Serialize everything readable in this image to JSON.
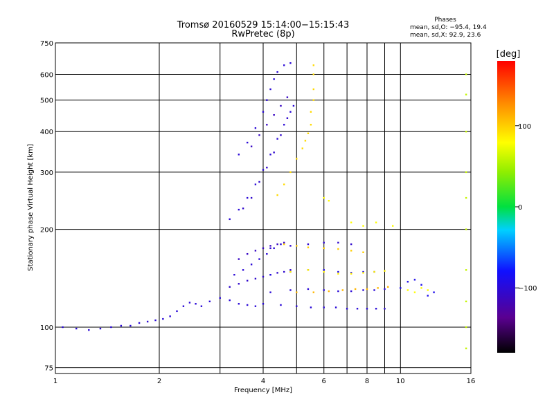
{
  "chart_data": {
    "type": "scatter",
    "title": "Tromsø 20160529 15:14:00−15:15:43",
    "subtitle": "RwPretec (8p)",
    "xlabel": "Frequency [MHz]",
    "ylabel": "Stationary phase Virtual Height [km]",
    "x_scale": "log",
    "y_scale": "log",
    "xlim": [
      1,
      16
    ],
    "ylim": [
      72,
      750
    ],
    "grid": true,
    "x_ticks": [
      1,
      2,
      4,
      6,
      8,
      10,
      16
    ],
    "x_tick_labels": [
      "1",
      "2",
      "4",
      "6",
      "8",
      "10",
      "16"
    ],
    "x_minor_ticks": [
      3,
      5,
      7,
      9
    ],
    "y_ticks": [
      75,
      100,
      200,
      300,
      400,
      500,
      600,
      750
    ],
    "y_tick_labels": [
      "75",
      "100",
      "200",
      "300",
      "400",
      "500",
      "600",
      "750"
    ],
    "phases": {
      "heading": "Phases",
      "line_o": "mean, sd,O: −95.4, 19.4",
      "line_x": "mean, sd,X:  92.9, 23.6"
    },
    "colorbar": {
      "label": "[deg]",
      "range": [
        -180,
        180
      ],
      "ticks": [
        -100,
        0,
        100
      ],
      "tick_labels": [
        "−100",
        "0",
        "100"
      ]
    },
    "series": [
      {
        "phase": -100,
        "points": [
          [
            1.05,
            100
          ],
          [
            1.15,
            99
          ],
          [
            1.25,
            98
          ],
          [
            1.35,
            99
          ],
          [
            1.45,
            100
          ],
          [
            1.55,
            101
          ],
          [
            1.65,
            101
          ],
          [
            1.75,
            103
          ],
          [
            1.85,
            104
          ],
          [
            1.95,
            105
          ],
          [
            2.05,
            106
          ],
          [
            2.15,
            108
          ],
          [
            2.25,
            112
          ],
          [
            2.35,
            116
          ],
          [
            2.45,
            119
          ],
          [
            2.55,
            118
          ],
          [
            2.65,
            116
          ],
          [
            2.8,
            120
          ],
          [
            3.0,
            123
          ],
          [
            3.2,
            121
          ],
          [
            3.4,
            118
          ],
          [
            3.6,
            117
          ],
          [
            3.8,
            116
          ]
        ]
      },
      {
        "phase": -105,
        "points": [
          [
            3.2,
            133
          ],
          [
            3.4,
            136
          ],
          [
            3.6,
            139
          ],
          [
            3.8,
            141
          ],
          [
            4.0,
            143
          ],
          [
            4.2,
            145
          ],
          [
            4.4,
            147
          ],
          [
            4.6,
            148
          ],
          [
            4.8,
            150
          ]
        ]
      },
      {
        "phase": -100,
        "points": [
          [
            3.3,
            145
          ],
          [
            3.5,
            150
          ],
          [
            3.7,
            156
          ],
          [
            3.9,
            162
          ],
          [
            4.1,
            168
          ],
          [
            4.3,
            175
          ],
          [
            4.5,
            180
          ]
        ]
      },
      {
        "phase": -110,
        "points": [
          [
            3.4,
            162
          ],
          [
            3.6,
            168
          ],
          [
            3.8,
            172
          ],
          [
            4.0,
            175
          ],
          [
            4.2,
            178
          ],
          [
            4.4,
            180
          ],
          [
            4.6,
            182
          ]
        ]
      },
      {
        "phase": -100,
        "points": [
          [
            3.2,
            215
          ],
          [
            3.4,
            230
          ],
          [
            3.6,
            250
          ],
          [
            3.8,
            275
          ],
          [
            4.0,
            305
          ],
          [
            4.2,
            340
          ],
          [
            4.4,
            380
          ],
          [
            4.6,
            420
          ],
          [
            4.8,
            460
          ],
          [
            4.9,
            480
          ]
        ]
      },
      {
        "phase": -105,
        "points": [
          [
            3.5,
            232
          ],
          [
            3.7,
            250
          ],
          [
            3.9,
            280
          ],
          [
            4.1,
            310
          ],
          [
            4.3,
            345
          ],
          [
            4.5,
            390
          ],
          [
            4.7,
            440
          ]
        ]
      },
      {
        "phase": -100,
        "points": [
          [
            3.4,
            340
          ],
          [
            3.6,
            370
          ],
          [
            3.8,
            410
          ],
          [
            4.0,
            460
          ],
          [
            4.1,
            500
          ],
          [
            4.2,
            540
          ],
          [
            4.3,
            580
          ],
          [
            4.4,
            610
          ],
          [
            4.6,
            640
          ],
          [
            4.8,
            650
          ]
        ]
      },
      {
        "phase": -110,
        "points": [
          [
            3.7,
            360
          ],
          [
            3.9,
            390
          ],
          [
            4.1,
            420
          ],
          [
            4.3,
            450
          ],
          [
            4.5,
            480
          ],
          [
            4.7,
            510
          ]
        ]
      },
      {
        "phase": -100,
        "points": [
          [
            4.0,
            118
          ],
          [
            4.5,
            117
          ],
          [
            5.0,
            116
          ],
          [
            5.5,
            115
          ],
          [
            6.0,
            115
          ],
          [
            6.5,
            115
          ],
          [
            7.0,
            114
          ],
          [
            7.5,
            114
          ],
          [
            8.0,
            114
          ],
          [
            8.5,
            114
          ],
          [
            9.0,
            114
          ]
        ]
      },
      {
        "phase": -100,
        "points": [
          [
            4.2,
            128
          ],
          [
            4.8,
            130
          ],
          [
            5.4,
            131
          ],
          [
            6.0,
            130
          ],
          [
            6.6,
            129
          ],
          [
            7.2,
            129
          ],
          [
            7.8,
            130
          ],
          [
            8.4,
            130
          ],
          [
            9.0,
            131
          ]
        ]
      },
      {
        "phase": -95,
        "points": [
          [
            4.2,
            145
          ],
          [
            4.8,
            148
          ],
          [
            5.4,
            150
          ],
          [
            6.0,
            150
          ],
          [
            6.6,
            148
          ],
          [
            7.2,
            147
          ],
          [
            7.8,
            148
          ],
          [
            8.4,
            148
          ]
        ]
      },
      {
        "phase": -105,
        "points": [
          [
            4.2,
            175
          ],
          [
            4.8,
            178
          ],
          [
            5.4,
            180
          ],
          [
            6.0,
            182
          ],
          [
            6.6,
            182
          ],
          [
            7.2,
            180
          ]
        ]
      },
      {
        "phase": 95,
        "points": [
          [
            4.4,
            255
          ],
          [
            4.6,
            275
          ],
          [
            4.8,
            300
          ],
          [
            5.0,
            330
          ],
          [
            5.2,
            355
          ],
          [
            5.3,
            375
          ],
          [
            5.4,
            395
          ],
          [
            5.5,
            420
          ],
          [
            5.5,
            460
          ],
          [
            5.6,
            500
          ],
          [
            5.6,
            540
          ],
          [
            5.6,
            600
          ],
          [
            5.6,
            640
          ]
        ]
      },
      {
        "phase": 100,
        "points": [
          [
            4.6,
            180
          ],
          [
            5.0,
            178
          ],
          [
            5.4,
            176
          ],
          [
            6.0,
            175
          ],
          [
            6.6,
            174
          ],
          [
            7.2,
            172
          ],
          [
            7.8,
            170
          ]
        ]
      },
      {
        "phase": 85,
        "points": [
          [
            4.8,
            148
          ],
          [
            5.4,
            150
          ],
          [
            6.0,
            148
          ],
          [
            6.6,
            146
          ],
          [
            7.2,
            146
          ],
          [
            7.8,
            147
          ],
          [
            8.4,
            148
          ],
          [
            9.0,
            149
          ]
        ]
      },
      {
        "phase": 110,
        "points": [
          [
            5.0,
            128
          ],
          [
            5.6,
            128
          ],
          [
            6.2,
            129
          ],
          [
            6.8,
            130
          ],
          [
            7.4,
            131
          ],
          [
            8.0,
            131
          ],
          [
            8.6,
            132
          ],
          [
            9.2,
            133
          ]
        ]
      },
      {
        "phase": 80,
        "points": [
          [
            6.0,
            250
          ],
          [
            6.2,
            245
          ],
          [
            7.2,
            210
          ],
          [
            7.8,
            205
          ],
          [
            8.5,
            210
          ],
          [
            9.5,
            205
          ],
          [
            10.5,
            130
          ],
          [
            11.0,
            128
          ],
          [
            11.5,
            132
          ],
          [
            12.0,
            130
          ]
        ]
      },
      {
        "phase": -90,
        "points": [
          [
            10.0,
            132
          ],
          [
            10.5,
            138
          ],
          [
            11.0,
            140
          ],
          [
            11.5,
            135
          ],
          [
            12.0,
            125
          ],
          [
            12.5,
            128
          ]
        ]
      },
      {
        "phase": 60,
        "points": [
          [
            15.5,
            600
          ],
          [
            15.5,
            520
          ],
          [
            15.5,
            400
          ],
          [
            15.5,
            300
          ],
          [
            15.5,
            250
          ],
          [
            15.5,
            200
          ],
          [
            15.5,
            150
          ],
          [
            15.5,
            120
          ],
          [
            15.5,
            100
          ],
          [
            15.5,
            86
          ]
        ]
      }
    ]
  }
}
